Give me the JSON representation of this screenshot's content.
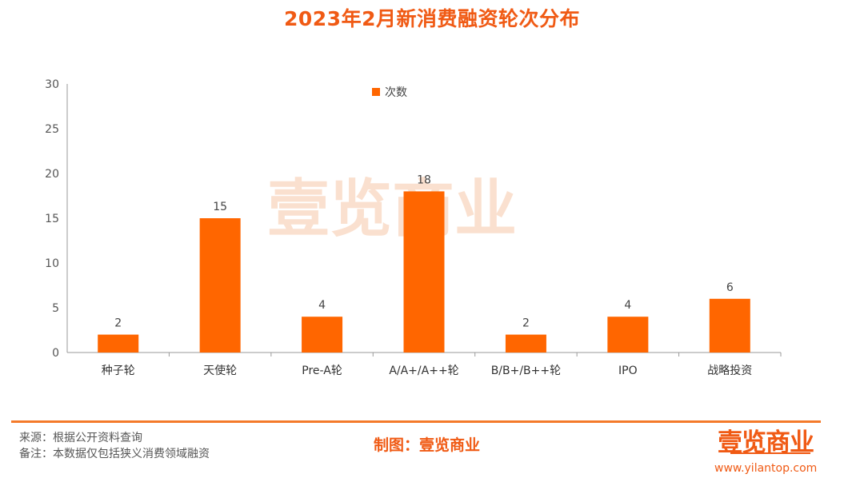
{
  "title": "2023年2月新消费融资轮次分布",
  "chart_data": {
    "type": "bar",
    "categories": [
      "种子轮",
      "天使轮",
      "Pre-A轮",
      "A/A+/A++轮",
      "B/B+/B++轮",
      "IPO",
      "战略投资"
    ],
    "series": [
      {
        "name": "次数",
        "values": [
          2,
          15,
          4,
          18,
          2,
          4,
          6
        ]
      }
    ],
    "ylim": [
      0,
      30
    ],
    "yticks": [
      0,
      5,
      10,
      15,
      20,
      25,
      30
    ],
    "legend": "top-center",
    "grid": false,
    "bar_color": "#ff6600",
    "data_labels": true
  },
  "watermark": "壹览商业",
  "footer": {
    "source": "来源：根据公开资料查询",
    "note": "备注：本数据仅包括狭义消费领域融资",
    "producer": "制图：壹览商业",
    "brand": "壹览商业",
    "url": "www.yilantop.com"
  },
  "colors": {
    "accent": "#f05a14",
    "bar": "#ff6600",
    "axis": "#9a9a9a"
  }
}
